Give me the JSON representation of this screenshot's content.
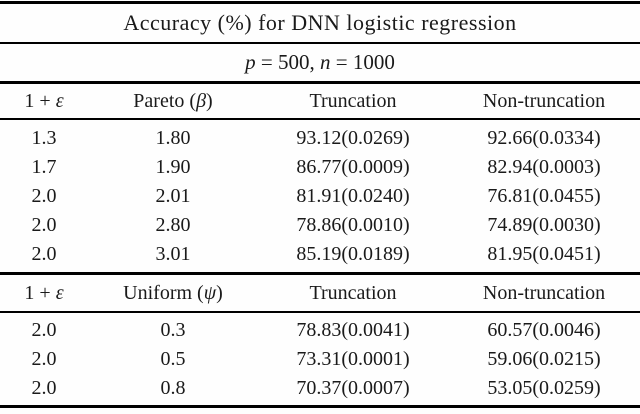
{
  "colors": {
    "background": "#fefefe",
    "text": "#1a1a1a",
    "rule": "#000000"
  },
  "table": {
    "title": "Accuracy (%) for DNN logistic regression",
    "subtitle": {
      "p_var": "p",
      "p_rest": " = 500, ",
      "n_var": "n",
      "n_rest": " = 1000",
      "full": "p = 500, n = 1000"
    },
    "sections": [
      {
        "col1": {
          "pre": "1 + ",
          "sym": "ε"
        },
        "col2": {
          "pre": "Pareto (",
          "sym": "β",
          "post": ")"
        },
        "col3": "Truncation",
        "col4": "Non-truncation",
        "rows": [
          [
            "1.3",
            "1.80",
            "93.12(0.0269)",
            "92.66(0.0334)"
          ],
          [
            "1.7",
            "1.90",
            "86.77(0.0009)",
            "82.94(0.0003)"
          ],
          [
            "2.0",
            "2.01",
            "81.91(0.0240)",
            "76.81(0.0455)"
          ],
          [
            "2.0",
            "2.80",
            "78.86(0.0010)",
            "74.89(0.0030)"
          ],
          [
            "2.0",
            "3.01",
            "85.19(0.0189)",
            "81.95(0.0451)"
          ]
        ]
      },
      {
        "col1": {
          "pre": "1 + ",
          "sym": "ε"
        },
        "col2": {
          "pre": "Uniform (",
          "sym": "ψ",
          "post": ")"
        },
        "col3": "Truncation",
        "col4": "Non-truncation",
        "rows": [
          [
            "2.0",
            "0.3",
            "78.83(0.0041)",
            "60.57(0.0046)"
          ],
          [
            "2.0",
            "0.5",
            "73.31(0.0001)",
            "59.06(0.0215)"
          ],
          [
            "2.0",
            "0.8",
            "70.37(0.0007)",
            "53.05(0.0259)"
          ]
        ]
      }
    ]
  }
}
